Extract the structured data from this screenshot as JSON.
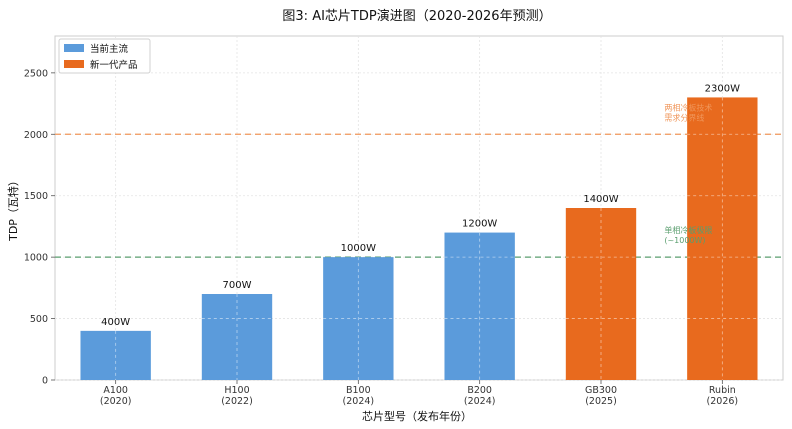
{
  "chart_data": {
    "type": "bar",
    "title": "图3: AI芯片TDP演进图（2020-2026年预测）",
    "xlabel": "芯片型号（发布年份）",
    "ylabel": "TDP（瓦特）",
    "ylim": [
      0,
      2800
    ],
    "yticks": [
      0,
      500,
      1000,
      1500,
      2000,
      2500
    ],
    "grid": true,
    "legend_position": "top-left",
    "categories": [
      {
        "name": "A100",
        "year": "(2020)"
      },
      {
        "name": "H100",
        "year": "(2022)"
      },
      {
        "name": "B100",
        "year": "(2024)"
      },
      {
        "name": "B200",
        "year": "(2024)"
      },
      {
        "name": "GB300",
        "year": "(2025)"
      },
      {
        "name": "Rubin",
        "year": "(2026)"
      }
    ],
    "values": [
      400,
      700,
      1000,
      1200,
      1400,
      2300
    ],
    "value_labels": [
      "400W",
      "700W",
      "1000W",
      "1200W",
      "1400W",
      "2300W"
    ],
    "series_group": [
      0,
      0,
      0,
      0,
      1,
      1
    ],
    "legend": [
      {
        "label": "当前主流",
        "color": "#5b9bdb"
      },
      {
        "label": "新一代产品",
        "color": "#e86a1e"
      }
    ],
    "reference_lines": [
      {
        "y": 2000,
        "color": "#f0965a",
        "label_lines": [
          "两相冷板技术",
          "需求分界线"
        ]
      },
      {
        "y": 1000,
        "color": "#5a9e6e",
        "label_lines": [
          "单相冷板极限",
          "(~1000W)"
        ]
      }
    ]
  }
}
